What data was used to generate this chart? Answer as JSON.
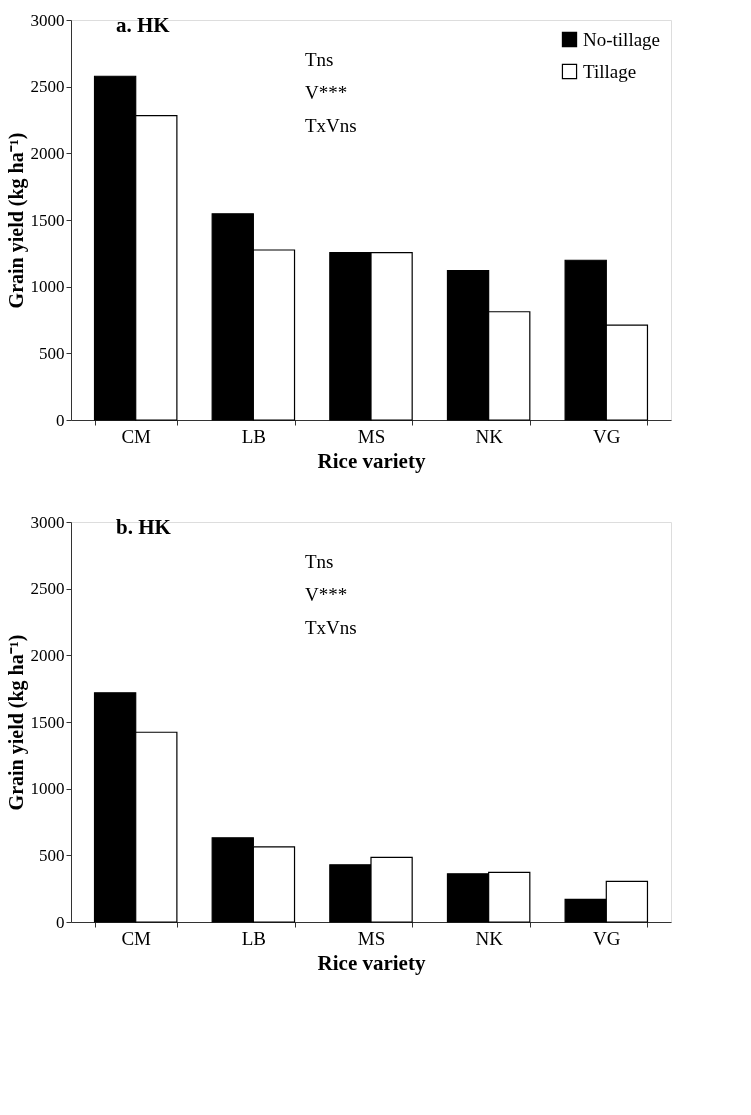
{
  "chart_data": [
    {
      "type": "bar",
      "title": "a. HK",
      "xlabel": "Rice variety",
      "ylabel": "Grain yield (kg ha⁻¹)",
      "categories": [
        "CM",
        "LB",
        "MS",
        "NK",
        "VG"
      ],
      "series": [
        {
          "name": "No-tillage",
          "color": "#000000",
          "values": [
            2578,
            1546,
            1255,
            1120,
            1198
          ]
        },
        {
          "name": "Tillage",
          "color": "#ffffff",
          "values": [
            2283,
            1275,
            1255,
            812,
            712
          ]
        }
      ],
      "ylim": [
        0,
        3000
      ],
      "yticks": [
        0,
        500,
        1000,
        1500,
        2000,
        2500,
        3000
      ],
      "grid": false,
      "legend": "top right",
      "annotations": [
        "Tns",
        "V***",
        "TxVns"
      ]
    },
    {
      "type": "bar",
      "title": "b. HK",
      "xlabel": "Rice variety",
      "ylabel": "Grain yield (kg ha⁻¹)",
      "categories": [
        "CM",
        "LB",
        "MS",
        "NK",
        "VG"
      ],
      "series": [
        {
          "name": "No-tillage",
          "color": "#000000",
          "values": [
            1719,
            631,
            429,
            362,
            170
          ]
        },
        {
          "name": "Tillage",
          "color": "#ffffff",
          "values": [
            1423,
            564,
            484,
            372,
            304
          ]
        }
      ],
      "ylim": [
        0,
        3000
      ],
      "yticks": [
        0,
        500,
        1000,
        1500,
        2000,
        2500,
        3000
      ],
      "grid": false,
      "legend": "top right",
      "annotations": [
        "Tns",
        "V***",
        "TxVns"
      ]
    }
  ]
}
